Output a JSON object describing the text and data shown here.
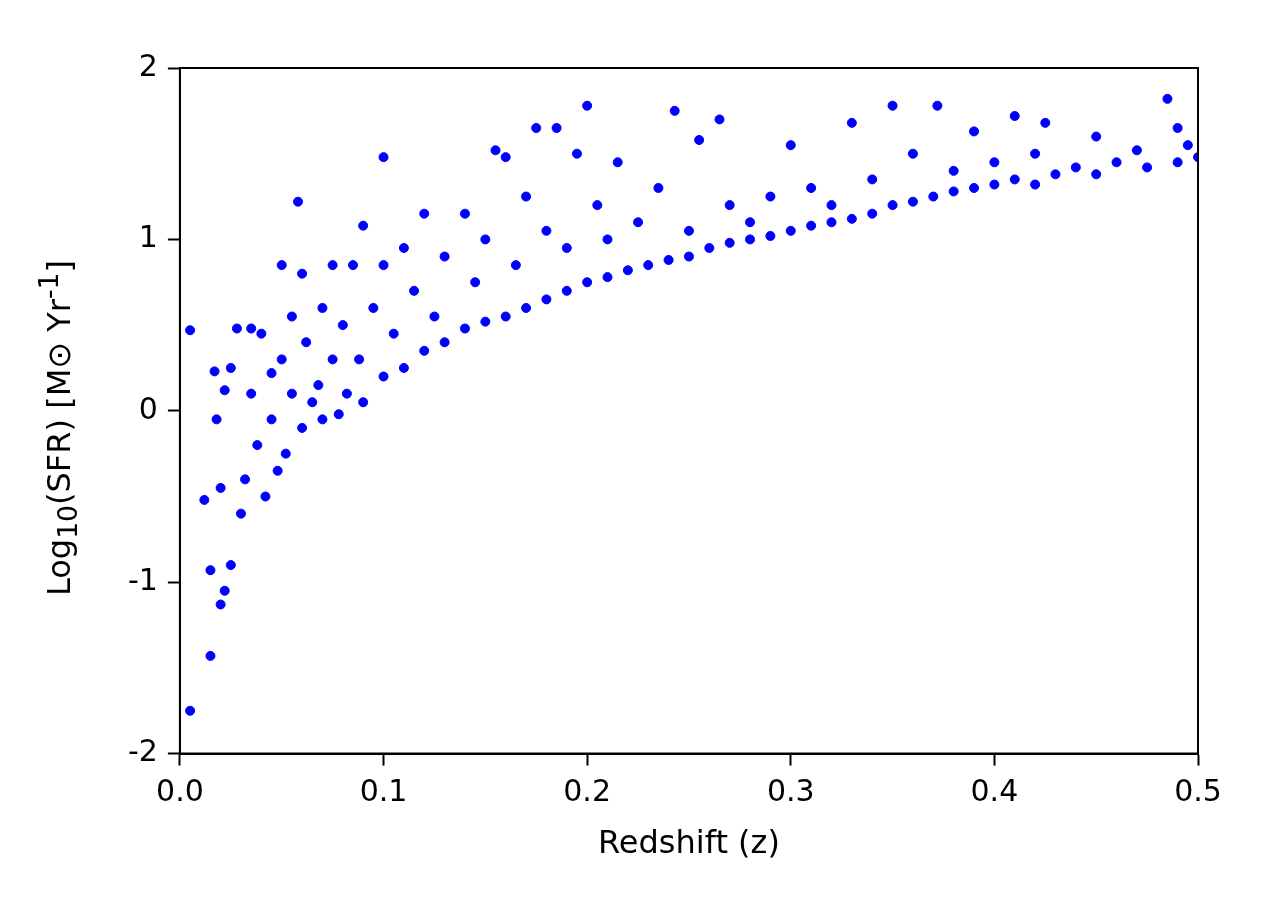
{
  "chart_data": {
    "type": "scatter",
    "xlabel": "Redshift (z)",
    "ylabel": "Log$_{10}$(SFR) [M⊙ Yr$^{-1}$]",
    "xlim": [
      0,
      0.5
    ],
    "ylim": [
      -2,
      2
    ],
    "xticks": [
      {
        "value": 0,
        "label": "0.0"
      },
      0.1,
      0.2,
      0.3,
      0.4,
      0.5
    ],
    "yticks": [
      -2,
      -1,
      0,
      1,
      2
    ],
    "grid": false,
    "legend": false,
    "marker": "circle",
    "series": [
      {
        "color": "#0000ff",
        "x": [
          0.005,
          0.005,
          0.012,
          0.015,
          0.015,
          0.017,
          0.018,
          0.02,
          0.022,
          0.025,
          0.02,
          0.022,
          0.025,
          0.028,
          0.03,
          0.032,
          0.035,
          0.035,
          0.038,
          0.04,
          0.042,
          0.045,
          0.045,
          0.048,
          0.05,
          0.05,
          0.052,
          0.055,
          0.055,
          0.058,
          0.06,
          0.06,
          0.062,
          0.065,
          0.068,
          0.07,
          0.07,
          0.075,
          0.075,
          0.078,
          0.08,
          0.082,
          0.085,
          0.088,
          0.09,
          0.09,
          0.095,
          0.1,
          0.1,
          0.1,
          0.105,
          0.11,
          0.11,
          0.115,
          0.12,
          0.12,
          0.125,
          0.13,
          0.13,
          0.14,
          0.14,
          0.145,
          0.15,
          0.15,
          0.155,
          0.16,
          0.16,
          0.165,
          0.17,
          0.17,
          0.175,
          0.18,
          0.18,
          0.185,
          0.19,
          0.19,
          0.195,
          0.2,
          0.2,
          0.205,
          0.21,
          0.21,
          0.215,
          0.22,
          0.225,
          0.23,
          0.235,
          0.24,
          0.243,
          0.25,
          0.25,
          0.255,
          0.26,
          0.265,
          0.27,
          0.27,
          0.28,
          0.28,
          0.29,
          0.29,
          0.3,
          0.3,
          0.31,
          0.31,
          0.32,
          0.32,
          0.33,
          0.33,
          0.34,
          0.34,
          0.35,
          0.35,
          0.36,
          0.36,
          0.372,
          0.37,
          0.38,
          0.38,
          0.39,
          0.39,
          0.4,
          0.4,
          0.41,
          0.41,
          0.42,
          0.42,
          0.425,
          0.43,
          0.44,
          0.45,
          0.45,
          0.46,
          0.47,
          0.475,
          0.485,
          0.49,
          0.49,
          0.495,
          0.5
        ],
        "values": [
          -1.75,
          0.47,
          -0.52,
          -1.43,
          -0.93,
          0.23,
          -0.05,
          -1.13,
          -1.05,
          -0.9,
          -0.45,
          0.12,
          0.25,
          0.48,
          -0.6,
          -0.4,
          0.48,
          0.1,
          -0.2,
          0.45,
          -0.5,
          0.22,
          -0.05,
          -0.35,
          0.85,
          0.3,
          -0.25,
          0.55,
          0.1,
          1.22,
          0.8,
          -0.1,
          0.4,
          0.05,
          0.15,
          0.6,
          -0.05,
          0.85,
          0.3,
          -0.02,
          0.5,
          0.1,
          0.85,
          0.3,
          1.08,
          0.05,
          0.6,
          1.48,
          0.2,
          0.85,
          0.45,
          0.95,
          0.25,
          0.7,
          1.15,
          0.35,
          0.55,
          0.9,
          0.4,
          1.15,
          0.48,
          0.75,
          1.0,
          0.52,
          1.52,
          1.48,
          0.55,
          0.85,
          1.25,
          0.6,
          1.65,
          1.05,
          0.65,
          1.65,
          0.7,
          0.95,
          1.5,
          1.78,
          0.75,
          1.2,
          1.0,
          0.78,
          1.45,
          0.82,
          1.1,
          0.85,
          1.3,
          0.88,
          1.75,
          1.05,
          0.9,
          1.58,
          0.95,
          1.7,
          1.2,
          0.98,
          1.1,
          1.0,
          1.25,
          1.02,
          1.55,
          1.05,
          1.3,
          1.08,
          1.2,
          1.1,
          1.68,
          1.12,
          1.35,
          1.15,
          1.78,
          1.2,
          1.5,
          1.22,
          1.78,
          1.25,
          1.4,
          1.28,
          1.63,
          1.3,
          1.45,
          1.32,
          1.72,
          1.35,
          1.5,
          1.32,
          1.68,
          1.38,
          1.42,
          1.6,
          1.38,
          1.45,
          1.52,
          1.42,
          1.82,
          1.65,
          1.45,
          1.55,
          1.48
        ]
      }
    ]
  }
}
